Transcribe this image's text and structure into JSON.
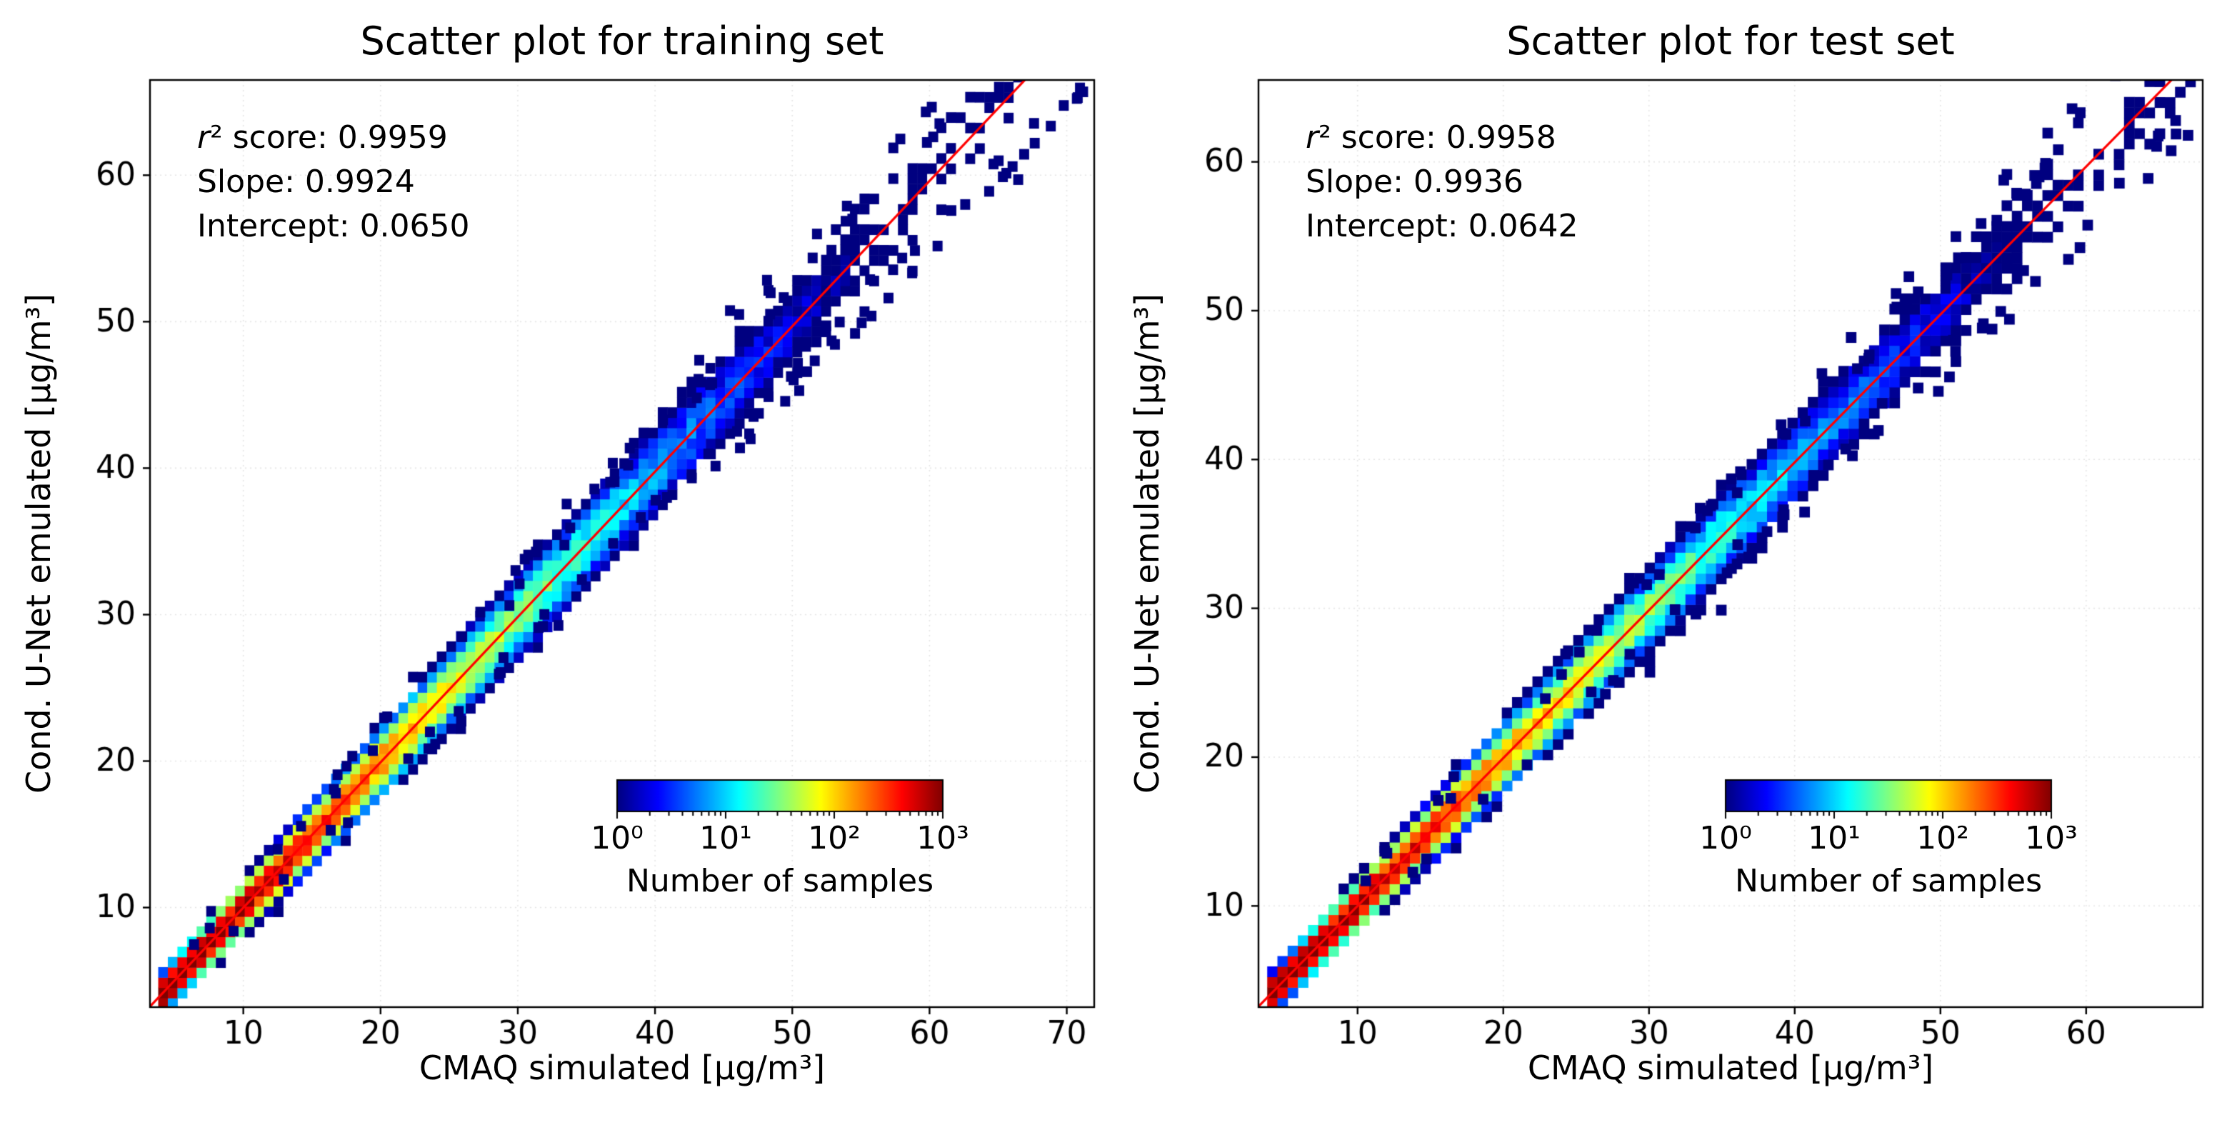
{
  "chart_data": [
    {
      "type": "scatter",
      "title": "Scatter plot for training set",
      "xlabel": "CMAQ simulated [µg/m³]",
      "ylabel": "Cond. U-Net emulated [µg/m³]",
      "annotations": [
        "r² score: 0.9959",
        "Slope: 0.9924",
        "Intercept: 0.0650"
      ],
      "r2_score": 0.9959,
      "fit_line": {
        "slope": 0.9924,
        "intercept": 0.065,
        "color": "#ff0000"
      },
      "xlim": [
        3.2,
        72.0
      ],
      "ylim": [
        3.2,
        66.5
      ],
      "xticks": [
        10,
        20,
        30,
        40,
        50,
        60,
        70
      ],
      "yticks": [
        10,
        20,
        30,
        40,
        50,
        60
      ],
      "grid": "light-dotted",
      "colorbar": {
        "label": "Number of samples",
        "tick_labels": [
          "10⁰",
          "10¹",
          "10²",
          "10³"
        ],
        "scale": "log",
        "range_exponents": [
          0,
          3
        ],
        "cmap": "jet"
      },
      "density_model": {
        "seed": 7,
        "bin_width": 0.7,
        "x_min": 3.8,
        "x_max": 71.3,
        "log10_peak_count": 3.6,
        "log10_decay_per_unit": 0.055,
        "sigma0": 0.38,
        "sigma_growth": 0.027,
        "min_column_count": 2.2,
        "outliers": 130
      }
    },
    {
      "type": "scatter",
      "title": "Scatter plot for test set",
      "xlabel": "CMAQ simulated [µg/m³]",
      "ylabel": "Cond. U-Net emulated [µg/m³]",
      "annotations": [
        "r² score: 0.9958",
        "Slope: 0.9936",
        "Intercept: 0.0642"
      ],
      "r2_score": 0.9958,
      "fit_line": {
        "slope": 0.9936,
        "intercept": 0.0642,
        "color": "#ff0000"
      },
      "xlim": [
        3.2,
        68.0
      ],
      "ylim": [
        3.2,
        65.5
      ],
      "xticks": [
        10,
        20,
        30,
        40,
        50,
        60
      ],
      "yticks": [
        10,
        20,
        30,
        40,
        50,
        60
      ],
      "grid": "light-dotted",
      "colorbar": {
        "label": "Number of samples",
        "tick_labels": [
          "10⁰",
          "10¹",
          "10²",
          "10³"
        ],
        "scale": "log",
        "range_exponents": [
          0,
          3
        ],
        "cmap": "jet"
      },
      "density_model": {
        "seed": 11,
        "bin_width": 0.7,
        "x_min": 3.8,
        "x_max": 67.2,
        "log10_peak_count": 3.6,
        "log10_decay_per_unit": 0.055,
        "sigma0": 0.36,
        "sigma_growth": 0.026,
        "min_column_count": 2.2,
        "outliers": 110
      }
    }
  ]
}
